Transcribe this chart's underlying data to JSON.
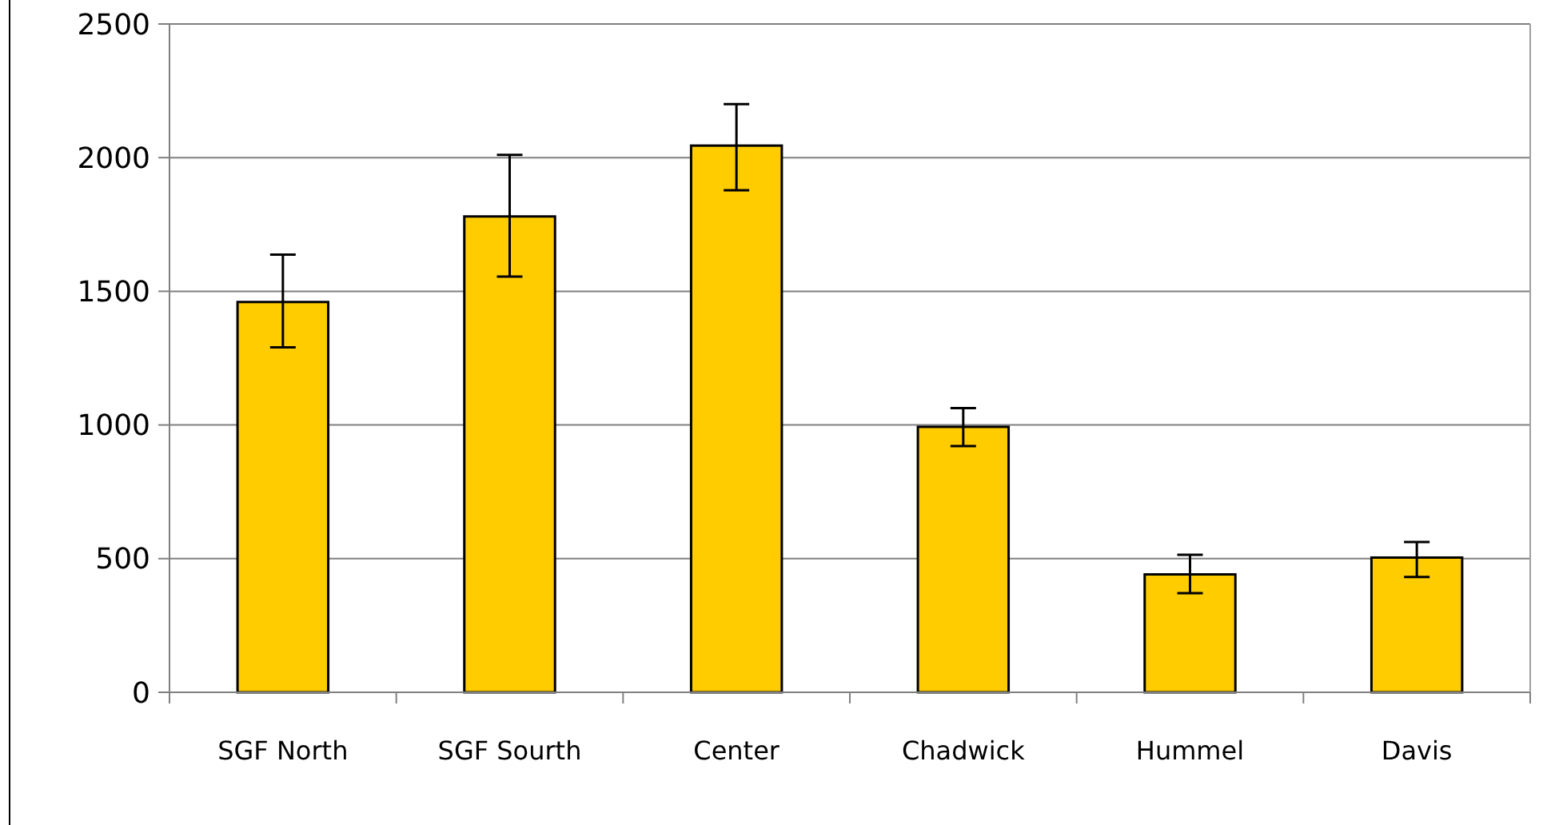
{
  "chart_data": {
    "type": "bar",
    "categories": [
      "SGF North",
      "SGF Sourth",
      "Center",
      "Chadwick",
      "Hummel",
      "Davis"
    ],
    "values": [
      1460,
      1780,
      2045,
      993,
      441,
      504
    ],
    "errors": [
      [
        1290,
        1637
      ],
      [
        1555,
        2010
      ],
      [
        1878,
        2200
      ],
      [
        921,
        1063
      ],
      [
        371,
        514
      ],
      [
        431,
        562
      ]
    ],
    "color": "#ffcc00",
    "ylim": [
      0,
      2500
    ],
    "yticks": [
      0,
      500,
      1000,
      1500,
      2000,
      2500
    ],
    "grid": "y"
  }
}
